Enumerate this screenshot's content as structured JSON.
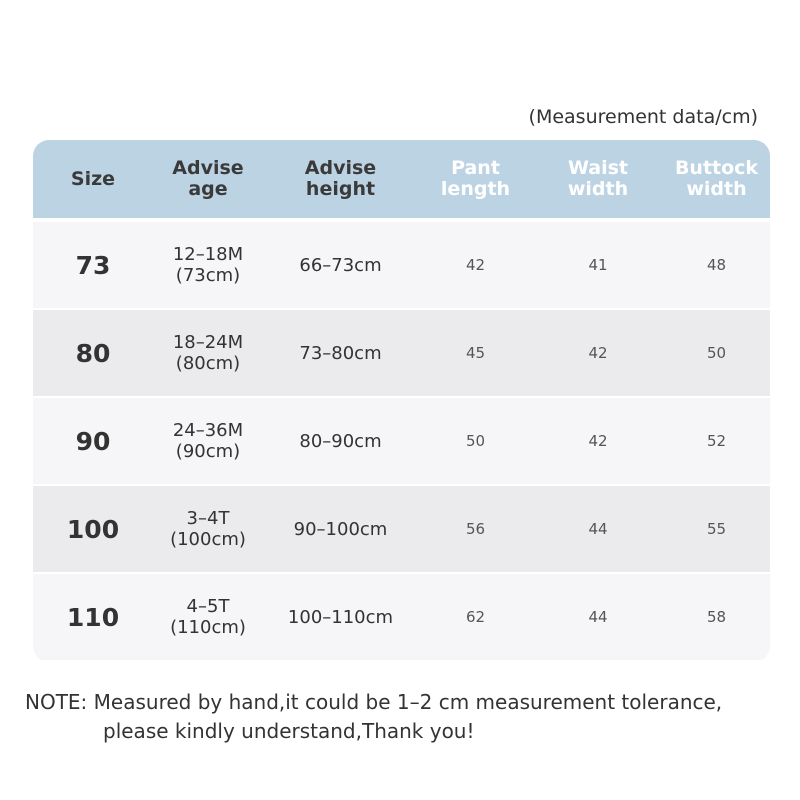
{
  "unit_note": "(Measurement data/cm)",
  "headers": [
    "Size",
    "Advise\nage",
    "Advise\nheight",
    "Pant\nlength",
    "Waist\nwidth",
    "Buttock\nwidth"
  ],
  "colors": {
    "header_bg": "#bcd3e4",
    "row_dark": "#ebebed",
    "row_light": "#f6f6f8"
  },
  "rows": [
    {
      "size": "73",
      "age": "12–18M",
      "age_cm": "(73cm)",
      "height": "66–73cm",
      "pant": "42",
      "waist": "41",
      "buttock": "48"
    },
    {
      "size": "80",
      "age": "18–24M",
      "age_cm": "(80cm)",
      "height": "73–80cm",
      "pant": "45",
      "waist": "42",
      "buttock": "50"
    },
    {
      "size": "90",
      "age": "24–36M",
      "age_cm": "(90cm)",
      "height": "80–90cm",
      "pant": "50",
      "waist": "42",
      "buttock": "52"
    },
    {
      "size": "100",
      "age": "3–4T",
      "age_cm": "(100cm)",
      "height": "90–100cm",
      "pant": "56",
      "waist": "44",
      "buttock": "55"
    },
    {
      "size": "110",
      "age": "4–5T",
      "age_cm": "(110cm)",
      "height": "100–110cm",
      "pant": "62",
      "waist": "44",
      "buttock": "58"
    }
  ],
  "note": {
    "line1": "NOTE: Measured by hand,it could be 1–2 cm measurement tolerance,",
    "line2": "please kindly understand,Thank you!"
  }
}
